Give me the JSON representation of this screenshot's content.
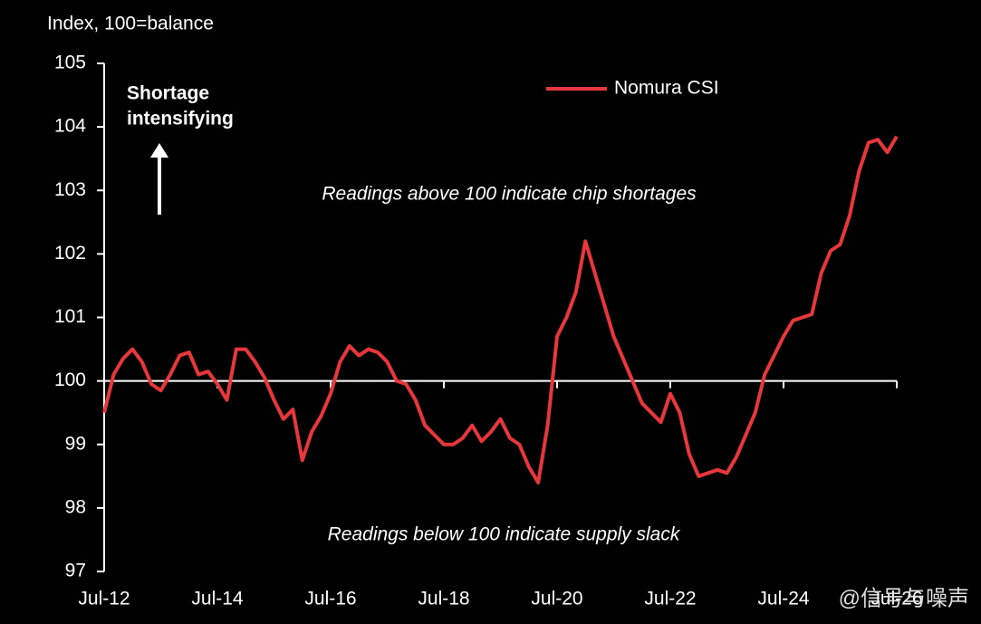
{
  "chart_data": {
    "type": "line",
    "y_axis_label": "Index, 100=balance",
    "annotations": {
      "shortage": [
        "Shortage",
        "intensifying"
      ],
      "above": "Readings above 100 indicate chip shortages",
      "below": "Readings below 100 indicate supply slack"
    },
    "watermark": "@信号与噪声",
    "categories": [
      "Jul-12",
      null,
      null,
      null,
      null,
      null,
      null,
      null,
      null,
      null,
      null,
      null,
      "Jul-14",
      null,
      null,
      null,
      null,
      null,
      null,
      null,
      null,
      null,
      null,
      null,
      "Jul-16",
      null,
      null,
      null,
      null,
      null,
      null,
      null,
      null,
      null,
      null,
      null,
      "Jul-18",
      null,
      null,
      null,
      null,
      null,
      null,
      null,
      null,
      null,
      null,
      null,
      "Jul-20",
      null,
      null,
      null,
      null,
      null,
      null,
      null,
      null,
      null,
      null,
      null,
      "Jul-22",
      null,
      null,
      null,
      null,
      null,
      null,
      null,
      null,
      null,
      null,
      null,
      "Jul-24",
      null,
      null,
      null,
      null,
      null,
      null,
      null,
      null,
      null,
      null,
      null,
      "Jul-26"
    ],
    "series": [
      {
        "name": "Nomura CSI",
        "color": "#e8373a",
        "values": [
          99.5,
          100.1,
          100.35,
          100.5,
          100.3,
          99.95,
          99.85,
          100.1,
          100.4,
          100.45,
          100.1,
          100.15,
          99.95,
          99.7,
          100.5,
          100.5,
          100.3,
          100.05,
          99.7,
          99.4,
          99.55,
          98.75,
          99.2,
          99.45,
          99.8,
          100.3,
          100.55,
          100.4,
          100.5,
          100.45,
          100.3,
          100.0,
          99.95,
          99.7,
          99.3,
          99.15,
          99.0,
          99.0,
          99.1,
          99.3,
          99.05,
          99.2,
          99.4,
          99.1,
          99.0,
          98.65,
          98.4,
          99.3,
          100.7,
          101.0,
          101.4,
          102.2,
          101.7,
          101.2,
          100.7,
          100.35,
          100.0,
          99.65,
          99.5,
          99.35,
          99.8,
          99.5,
          98.85,
          98.5,
          98.55,
          98.6,
          98.55,
          98.8,
          99.15,
          99.5,
          100.1,
          100.4,
          100.7,
          100.95,
          101.0,
          101.05,
          101.7,
          102.05,
          102.15,
          102.6,
          103.3,
          103.75,
          103.8,
          103.6,
          103.85
        ]
      }
    ],
    "ylim": [
      97,
      105
    ],
    "yticks": [
      97,
      98,
      99,
      100,
      101,
      102,
      103,
      104,
      105
    ],
    "baseline": 100,
    "legend": "top-right",
    "grid": false
  }
}
